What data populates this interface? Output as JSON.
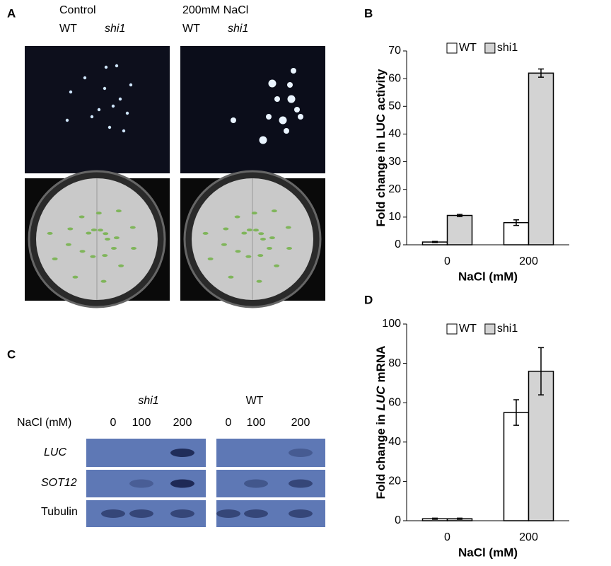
{
  "panel_a": {
    "label": "A",
    "control": "Control",
    "salt": "200mM NaCl",
    "genotypes": [
      "WT",
      "shi1",
      "WT",
      "shi1"
    ]
  },
  "panel_c": {
    "label": "C",
    "groups": [
      "shi1",
      "WT"
    ],
    "nacl_label": "NaCl (mM)",
    "lanes": [
      "0",
      "100",
      "200",
      "0",
      "100",
      "200"
    ],
    "rows": [
      "LUC",
      "SOT12",
      "Tubulin"
    ]
  },
  "chart_data": [
    {
      "type": "bar",
      "panel": "B",
      "categories": [
        "0",
        "200"
      ],
      "x_label": "NaCl (mM)",
      "y_label": [
        "Fold change in LUC activity"
      ],
      "ylim": [
        0,
        70
      ],
      "yticks": [
        0,
        10,
        20,
        30,
        40,
        50,
        60,
        70
      ],
      "series": [
        {
          "name": "WT",
          "color": "#ffffff",
          "values": [
            1,
            8
          ],
          "errors": [
            0.2,
            1
          ]
        },
        {
          "name": "shi1",
          "color": "#d3d3d3",
          "values": [
            10.6,
            62
          ],
          "errors": [
            0.4,
            1.5
          ]
        }
      ]
    },
    {
      "type": "bar",
      "panel": "D",
      "categories": [
        "0",
        "200"
      ],
      "x_label": "NaCl (mM)",
      "y_label": [
        "Fold change in",
        "LUC",
        "mRNA"
      ],
      "ylim": [
        0,
        100
      ],
      "yticks": [
        0,
        20,
        40,
        60,
        80,
        100
      ],
      "series": [
        {
          "name": "WT",
          "color": "#ffffff",
          "values": [
            1,
            55
          ],
          "errors": [
            0.3,
            6.5
          ]
        },
        {
          "name": "shi1",
          "color": "#d3d3d3",
          "values": [
            1,
            76
          ],
          "errors": [
            0.3,
            12
          ]
        }
      ]
    }
  ]
}
